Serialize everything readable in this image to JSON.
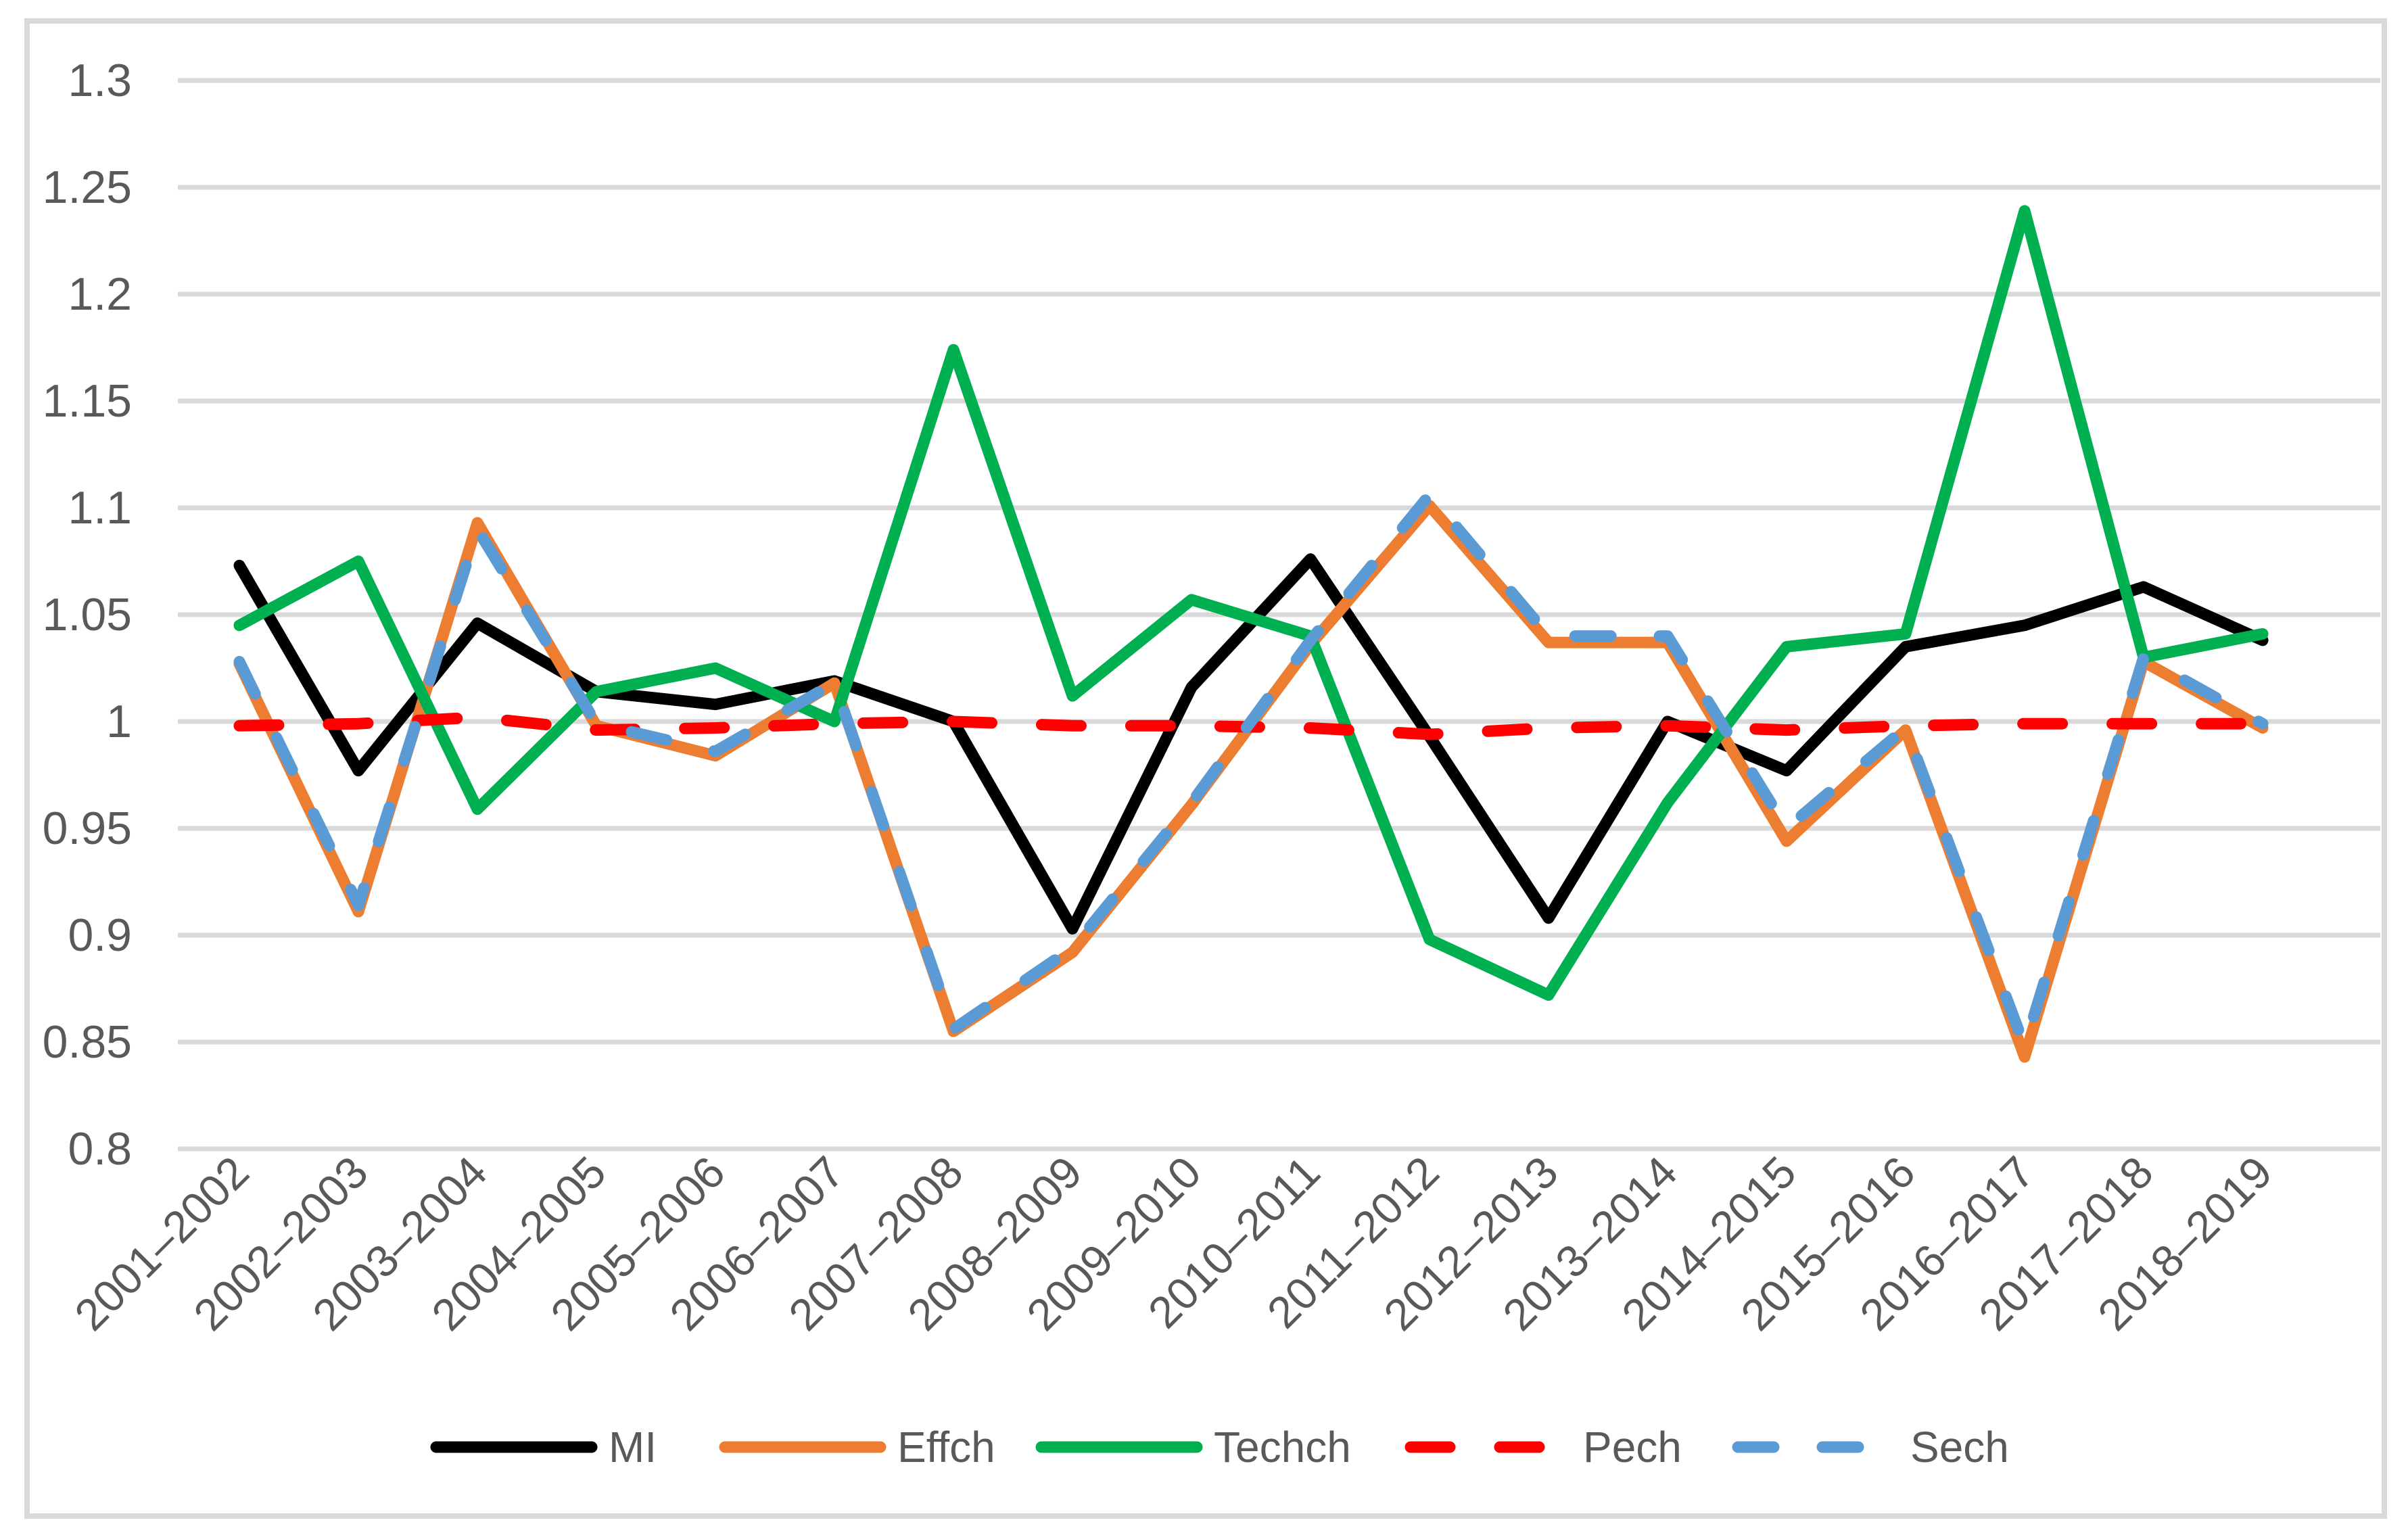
{
  "chart_data": {
    "type": "line",
    "title": "",
    "categories": [
      "2001–2002",
      "2002–2003",
      "2003–2004",
      "2004–2005",
      "2005–2006",
      "2006–2007",
      "2007–2008",
      "2008–2009",
      "2009–2010",
      "2010–2011",
      "2011–2012",
      "2012–2013",
      "2013–2014",
      "2014–2015",
      "2015–2016",
      "2016–2017",
      "2017–2018",
      "2018–2019"
    ],
    "series": [
      {
        "name": "MI",
        "color": "#000000",
        "dash": null,
        "values": [
          1.073,
          0.977,
          1.046,
          1.014,
          1.008,
          1.019,
          1.0,
          0.903,
          1.016,
          1.076,
          0.993,
          0.908,
          1.0,
          0.977,
          1.035,
          1.045,
          1.063,
          1.038
        ]
      },
      {
        "name": "Effch",
        "color": "#ED7D31",
        "dash": null,
        "values": [
          1.027,
          0.911,
          1.093,
          0.998,
          0.984,
          1.018,
          0.855,
          0.892,
          0.961,
          1.036,
          1.101,
          1.037,
          1.037,
          0.944,
          0.996,
          0.843,
          1.028,
          0.997
        ]
      },
      {
        "name": "Techch",
        "color": "#00B050",
        "dash": null,
        "values": [
          1.045,
          1.075,
          0.959,
          1.014,
          1.025,
          1.0,
          1.174,
          1.012,
          1.057,
          1.04,
          0.898,
          0.872,
          0.962,
          1.035,
          1.041,
          1.239,
          1.03,
          1.041
        ]
      },
      {
        "name": "Pech",
        "color": "#FF0000",
        "dash": "58 74",
        "values": [
          0.998,
          0.999,
          1.002,
          0.996,
          0.997,
          0.999,
          1.0,
          0.998,
          0.998,
          0.997,
          0.994,
          0.997,
          0.998,
          0.996,
          0.998,
          0.999,
          0.999,
          0.999
        ]
      },
      {
        "name": "Sech",
        "color": "#5B9BD5",
        "dash": "53 72",
        "values": [
          1.028,
          0.914,
          1.09,
          0.999,
          0.986,
          1.018,
          0.856,
          0.894,
          0.962,
          1.038,
          1.106,
          1.04,
          1.04,
          0.95,
          0.997,
          0.848,
          1.03,
          0.999
        ]
      }
    ],
    "y_axis": {
      "min": 0.8,
      "max": 1.3,
      "step": 0.05,
      "tick_labels": [
        "0.8",
        "0.85",
        "0.9",
        "0.95",
        "1",
        "1.05",
        "1.1",
        "1.15",
        "1.2",
        "1.25",
        "1.3"
      ]
    },
    "x_axis_rotation_deg": -45,
    "legend_position": "bottom",
    "grid": true
  },
  "colors": {
    "background": "#FFFFFF",
    "chart_border": "#D9D9D9",
    "gridline": "#D9D9D9",
    "tick_text": "#595959"
  }
}
